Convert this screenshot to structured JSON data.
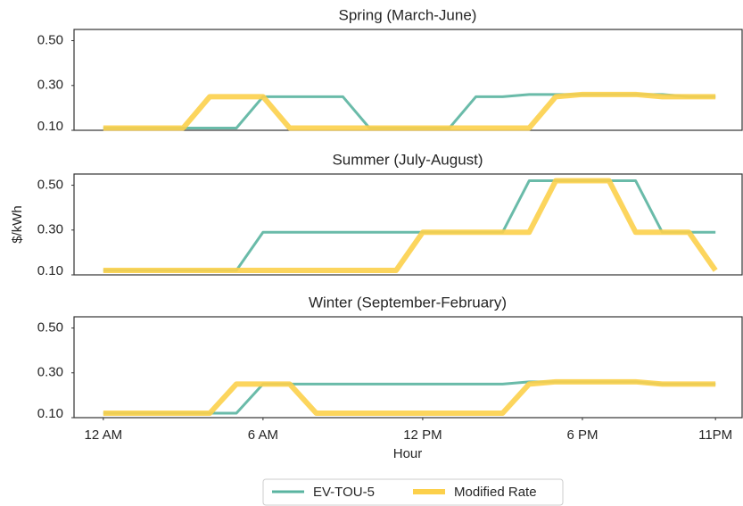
{
  "chart_data": [
    {
      "type": "line",
      "title": "Spring (March-June)",
      "x": [
        0,
        1,
        2,
        3,
        4,
        5,
        6,
        7,
        8,
        9,
        10,
        11,
        12,
        13,
        14,
        15,
        16,
        17,
        18,
        19,
        20,
        21,
        22,
        23
      ],
      "xlim": [
        -1.1,
        24
      ],
      "ylim": [
        0.1,
        0.55
      ],
      "yticks": [
        {
          "value": 0.1,
          "label": "0.10"
        },
        {
          "value": 0.3,
          "label": "0.30"
        },
        {
          "value": 0.5,
          "label": "0.50"
        }
      ],
      "series": [
        {
          "name": "EV-TOU-5",
          "color": "#5ab4a0",
          "width": 3,
          "values": [
            0.11,
            0.11,
            0.11,
            0.11,
            0.11,
            0.11,
            0.25,
            0.25,
            0.25,
            0.25,
            0.11,
            0.11,
            0.11,
            0.11,
            0.25,
            0.25,
            0.26,
            0.26,
            0.26,
            0.26,
            0.26,
            0.26,
            0.25,
            0.25
          ]
        },
        {
          "name": "Modified Rate",
          "color": "#fcd04b",
          "width": 6,
          "values": [
            0.11,
            0.11,
            0.11,
            0.11,
            0.25,
            0.25,
            0.25,
            0.11,
            0.11,
            0.11,
            0.11,
            0.11,
            0.11,
            0.11,
            0.11,
            0.11,
            0.11,
            0.25,
            0.26,
            0.26,
            0.26,
            0.25,
            0.25,
            0.25
          ]
        }
      ]
    },
    {
      "type": "line",
      "title": "Summer (July-August)",
      "ylabel": "$/kWh",
      "x": [
        0,
        1,
        2,
        3,
        4,
        5,
        6,
        7,
        8,
        9,
        10,
        11,
        12,
        13,
        14,
        15,
        16,
        17,
        18,
        19,
        20,
        21,
        22,
        23
      ],
      "xlim": [
        -1.1,
        24
      ],
      "ylim": [
        0.1,
        0.55
      ],
      "yticks": [
        {
          "value": 0.1,
          "label": "0.10"
        },
        {
          "value": 0.3,
          "label": "0.30"
        },
        {
          "value": 0.5,
          "label": "0.50"
        }
      ],
      "series": [
        {
          "name": "EV-TOU-5",
          "color": "#5ab4a0",
          "width": 3,
          "values": [
            0.12,
            0.12,
            0.12,
            0.12,
            0.12,
            0.12,
            0.29,
            0.29,
            0.29,
            0.29,
            0.29,
            0.29,
            0.29,
            0.29,
            0.29,
            0.29,
            0.52,
            0.52,
            0.52,
            0.52,
            0.52,
            0.29,
            0.29,
            0.29
          ]
        },
        {
          "name": "Modified Rate",
          "color": "#fcd04b",
          "width": 6,
          "values": [
            0.12,
            0.12,
            0.12,
            0.12,
            0.12,
            0.12,
            0.12,
            0.12,
            0.12,
            0.12,
            0.12,
            0.12,
            0.29,
            0.29,
            0.29,
            0.29,
            0.29,
            0.52,
            0.52,
            0.52,
            0.29,
            0.29,
            0.29,
            0.12
          ]
        }
      ]
    },
    {
      "type": "line",
      "title": "Winter (September-February)",
      "xlabel": "Hour",
      "x": [
        0,
        1,
        2,
        3,
        4,
        5,
        6,
        7,
        8,
        9,
        10,
        11,
        12,
        13,
        14,
        15,
        16,
        17,
        18,
        19,
        20,
        21,
        22,
        23
      ],
      "xlim": [
        -1.1,
        24
      ],
      "xticks": [
        {
          "value": 0,
          "label": "12 AM"
        },
        {
          "value": 6,
          "label": "6 AM"
        },
        {
          "value": 12,
          "label": "12 PM"
        },
        {
          "value": 18,
          "label": "6 PM"
        },
        {
          "value": 23,
          "label": "11PM"
        }
      ],
      "ylim": [
        0.1,
        0.55
      ],
      "yticks": [
        {
          "value": 0.1,
          "label": "0.10"
        },
        {
          "value": 0.3,
          "label": "0.30"
        },
        {
          "value": 0.5,
          "label": "0.50"
        }
      ],
      "series": [
        {
          "name": "EV-TOU-5",
          "color": "#5ab4a0",
          "width": 3,
          "values": [
            0.12,
            0.12,
            0.12,
            0.12,
            0.12,
            0.12,
            0.25,
            0.25,
            0.25,
            0.25,
            0.25,
            0.25,
            0.25,
            0.25,
            0.25,
            0.25,
            0.26,
            0.26,
            0.26,
            0.26,
            0.26,
            0.25,
            0.25,
            0.25
          ]
        },
        {
          "name": "Modified Rate",
          "color": "#fcd04b",
          "width": 6,
          "values": [
            0.12,
            0.12,
            0.12,
            0.12,
            0.12,
            0.25,
            0.25,
            0.25,
            0.12,
            0.12,
            0.12,
            0.12,
            0.12,
            0.12,
            0.12,
            0.12,
            0.25,
            0.26,
            0.26,
            0.26,
            0.26,
            0.25,
            0.25,
            0.25
          ]
        }
      ]
    }
  ]
}
